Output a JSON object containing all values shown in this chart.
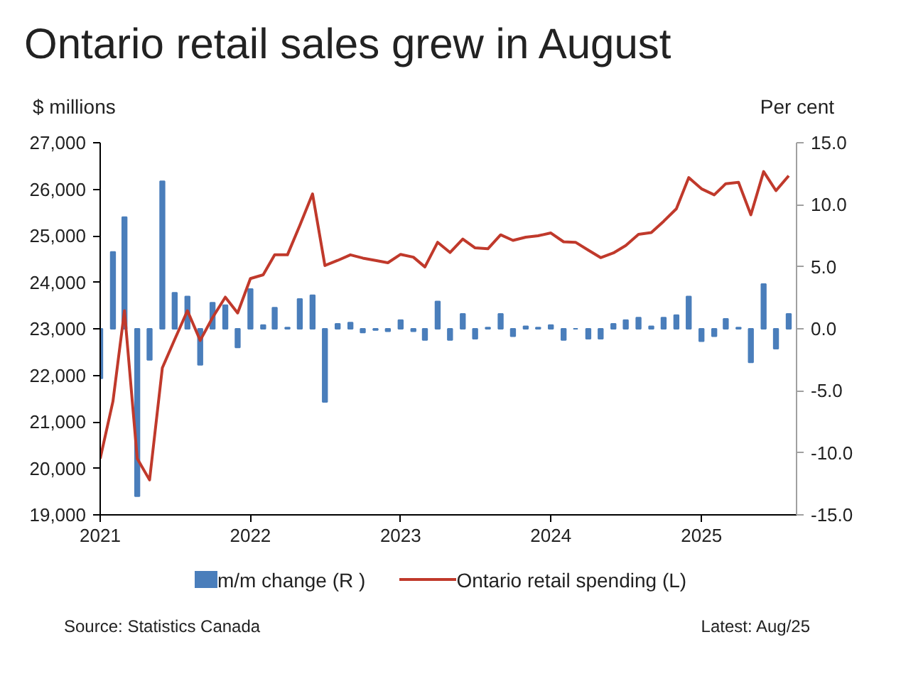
{
  "chart_data": {
    "type": "bar",
    "title": "Ontario retail sales grew in August",
    "ylabel": "$ millions",
    "y2label": "Per cent",
    "x": [
      "2021-01",
      "2021-02",
      "2021-03",
      "2021-04",
      "2021-05",
      "2021-06",
      "2021-07",
      "2021-08",
      "2021-09",
      "2021-10",
      "2021-11",
      "2021-12",
      "2022-01",
      "2022-02",
      "2022-03",
      "2022-04",
      "2022-05",
      "2022-06",
      "2022-07",
      "2022-08",
      "2022-09",
      "2022-10",
      "2022-11",
      "2022-12",
      "2023-01",
      "2023-02",
      "2023-03",
      "2023-04",
      "2023-05",
      "2023-06",
      "2023-07",
      "2023-08",
      "2023-09",
      "2023-10",
      "2023-11",
      "2023-12",
      "2024-01",
      "2024-02",
      "2024-03",
      "2024-04",
      "2024-05",
      "2024-06",
      "2024-07",
      "2024-08",
      "2024-09",
      "2024-10",
      "2024-11",
      "2024-12",
      "2025-01",
      "2025-02",
      "2025-03",
      "2025-04",
      "2025-05",
      "2025-06",
      "2025-07",
      "2025-08"
    ],
    "series": [
      {
        "name": "m/m change (R )",
        "axis": "y2",
        "color": "#4a7ebb",
        "values": [
          -4.0,
          6.2,
          9.0,
          -13.5,
          -2.5,
          11.9,
          2.9,
          2.6,
          -2.9,
          2.1,
          1.9,
          -1.5,
          3.2,
          0.3,
          1.7,
          0.1,
          2.4,
          2.7,
          -5.9,
          0.4,
          0.5,
          -0.3,
          -0.1,
          -0.2,
          0.7,
          -0.2,
          -0.9,
          2.2,
          -0.9,
          1.2,
          -0.8,
          0.1,
          1.2,
          -0.6,
          0.2,
          0.1,
          0.3,
          -0.9,
          0.0,
          -0.8,
          -0.8,
          0.4,
          0.7,
          0.9,
          0.2,
          0.9,
          1.1,
          2.6,
          -1.0,
          -0.6,
          0.8,
          0.1,
          -2.7,
          3.6,
          -1.6,
          1.2
        ]
      },
      {
        "name": "Ontario retail spending (L)",
        "type": "line",
        "color": "#c0392b",
        "values": [
          20210,
          21440,
          23390,
          20210,
          19750,
          22160,
          22770,
          23390,
          22750,
          23240,
          23680,
          23340,
          24080,
          24160,
          24590,
          24590,
          25220,
          25900,
          24360,
          24470,
          24590,
          24520,
          24470,
          24420,
          24600,
          24540,
          24330,
          24860,
          24640,
          24930,
          24740,
          24720,
          25020,
          24900,
          24970,
          25000,
          25060,
          24870,
          24860,
          24690,
          24530,
          24630,
          24790,
          25030,
          25070,
          25310,
          25580,
          26250,
          26010,
          25880,
          26120,
          26150,
          25450,
          26380,
          25970,
          26290
        ]
      }
    ],
    "xlim": [
      "2021-01",
      "2025-08-20"
    ],
    "xticks": [
      {
        "value": "2021",
        "label": "2021"
      },
      {
        "value": "2022",
        "label": "2022"
      },
      {
        "value": "2023",
        "label": "2023"
      },
      {
        "value": "2024",
        "label": "2024"
      },
      {
        "value": "2025",
        "label": "2025"
      }
    ],
    "ylim": [
      19000,
      27000
    ],
    "yticks": [
      {
        "value": 19000,
        "label": "19,000"
      },
      {
        "value": 20000,
        "label": "20,000"
      },
      {
        "value": 21000,
        "label": "21,000"
      },
      {
        "value": 22000,
        "label": "22,000"
      },
      {
        "value": 23000,
        "label": "23,000"
      },
      {
        "value": 24000,
        "label": "24,000"
      },
      {
        "value": 25000,
        "label": "25,000"
      },
      {
        "value": 26000,
        "label": "26,000"
      },
      {
        "value": 27000,
        "label": "27,000"
      }
    ],
    "y2lim": [
      -15,
      15
    ],
    "y2ticks": [
      {
        "value": -15,
        "label": "-15.0"
      },
      {
        "value": -10,
        "label": "-10.0"
      },
      {
        "value": -5,
        "label": "-5.0"
      },
      {
        "value": 0,
        "label": "0.0"
      },
      {
        "value": 5,
        "label": "5.0"
      },
      {
        "value": 10,
        "label": "10.0"
      },
      {
        "value": 15,
        "label": "15.0"
      }
    ],
    "grid": false,
    "legend": "bottom",
    "annotations": [
      "Source: Statistics Canada",
      "Latest: Aug/25"
    ]
  }
}
